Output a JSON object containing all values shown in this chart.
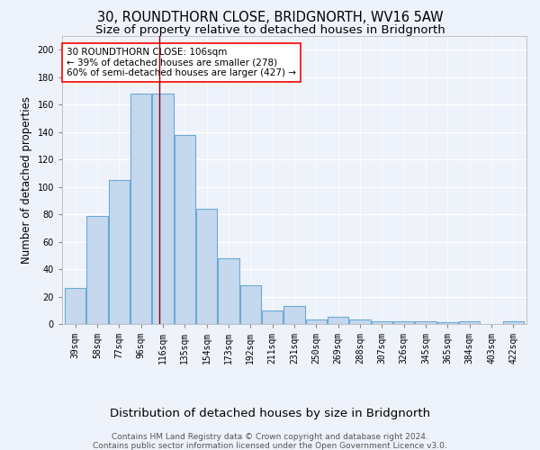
{
  "title": "30, ROUNDTHORN CLOSE, BRIDGNORTH, WV16 5AW",
  "subtitle": "Size of property relative to detached houses in Bridgnorth",
  "xlabel_bottom": "Distribution of detached houses by size in Bridgnorth",
  "ylabel": "Number of detached properties",
  "bar_labels": [
    "39sqm",
    "58sqm",
    "77sqm",
    "96sqm",
    "116sqm",
    "135sqm",
    "154sqm",
    "173sqm",
    "192sqm",
    "211sqm",
    "231sqm",
    "250sqm",
    "269sqm",
    "288sqm",
    "307sqm",
    "326sqm",
    "345sqm",
    "365sqm",
    "384sqm",
    "403sqm",
    "422sqm"
  ],
  "bar_values": [
    26,
    79,
    105,
    168,
    168,
    138,
    84,
    48,
    28,
    10,
    13,
    3,
    5,
    3,
    2,
    2,
    2,
    1,
    2,
    0,
    2
  ],
  "bar_color": "#c5d8ee",
  "bar_edge_color": "#6aaad4",
  "red_line_x": 3.82,
  "annotation_text": "30 ROUNDTHORN CLOSE: 106sqm\n← 39% of detached houses are smaller (278)\n60% of semi-detached houses are larger (427) →",
  "annotation_box_color": "white",
  "annotation_box_edge": "red",
  "ylim": [
    0,
    210
  ],
  "yticks": [
    0,
    20,
    40,
    60,
    80,
    100,
    120,
    140,
    160,
    180,
    200
  ],
  "footer_line1": "Contains HM Land Registry data © Crown copyright and database right 2024.",
  "footer_line2": "Contains public sector information licensed under the Open Government Licence v3.0.",
  "bg_color": "#eef2fa",
  "grid_color": "#ffffff",
  "title_fontsize": 10.5,
  "subtitle_fontsize": 9.5,
  "tick_fontsize": 7,
  "ylabel_fontsize": 8.5,
  "annotation_fontsize": 7.5,
  "footer_fontsize": 6.5
}
